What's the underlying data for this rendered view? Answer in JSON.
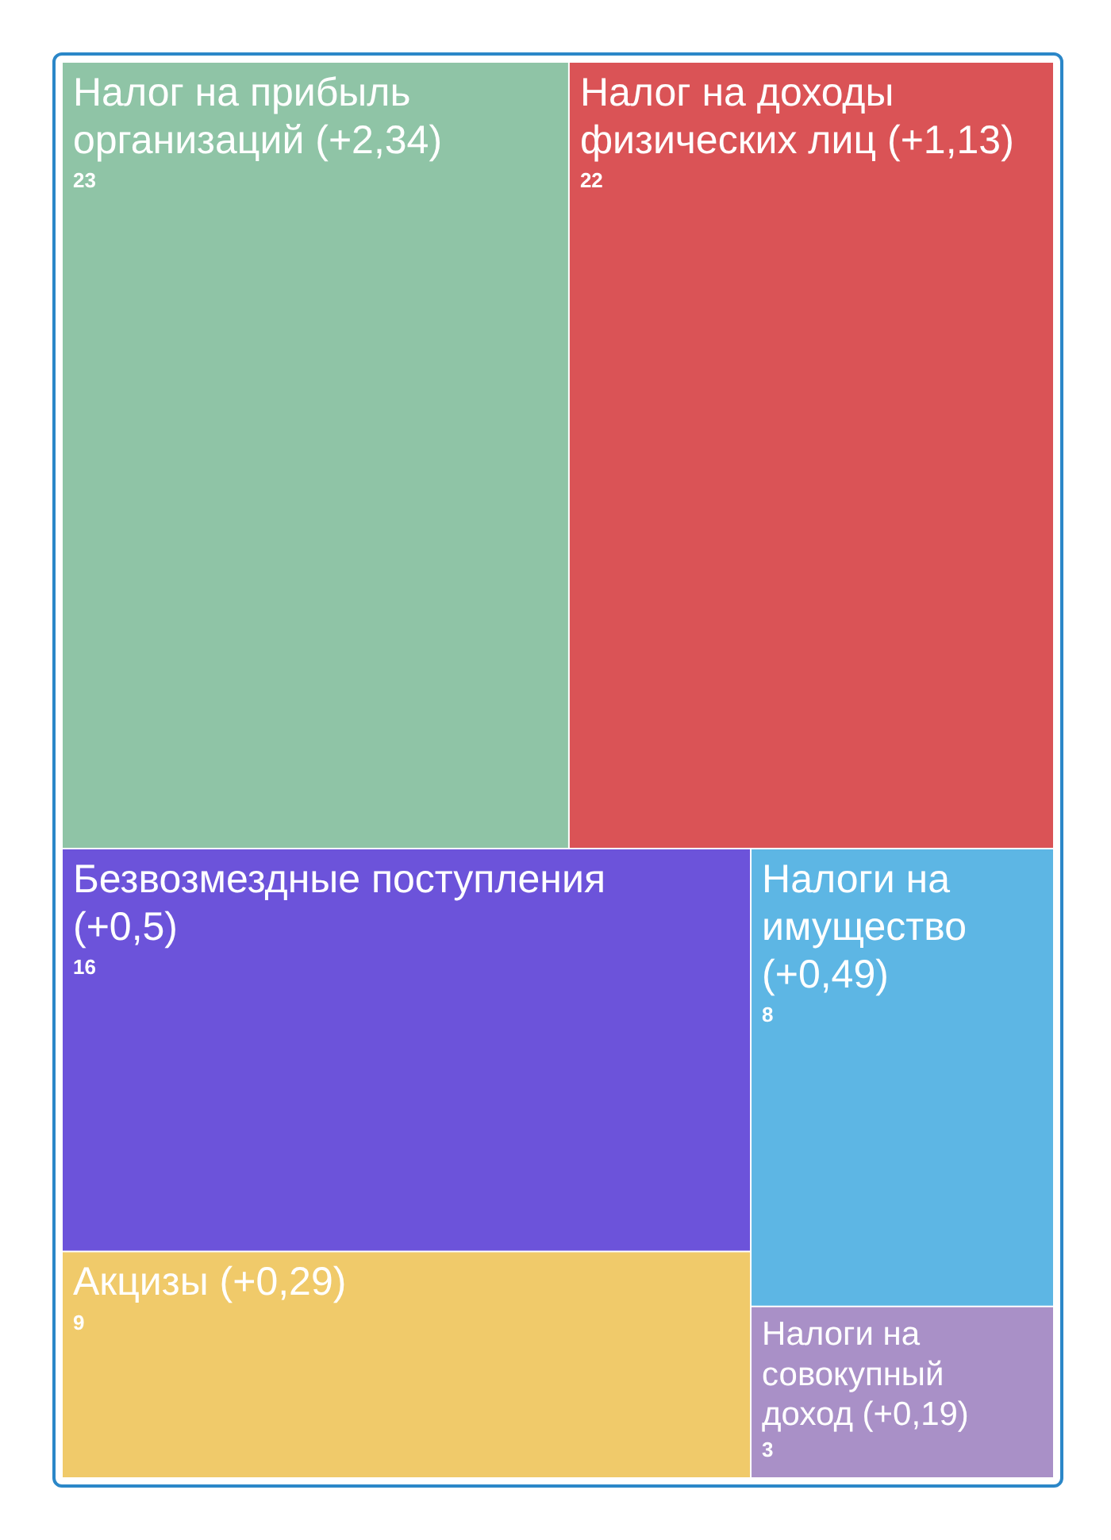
{
  "chart_data": {
    "type": "other",
    "categories": [
      "Налог на прибыль организаций (+2,34)",
      "Налог на доходы физических лиц (+1,13)",
      "Безвозмездные поступления (+0,5)",
      "Акцизы (+0,29)",
      "Налоги на имущество (+0,49)",
      "Налоги на совокупный доход (+0,19)"
    ],
    "values": [
      23,
      22,
      16,
      9,
      8,
      3
    ],
    "colors": [
      "#8fc4a6",
      "#da5356",
      "#6c53da",
      "#f0ca6a",
      "#5db6e4",
      "#a990c7"
    ],
    "data_labels": true
  }
}
